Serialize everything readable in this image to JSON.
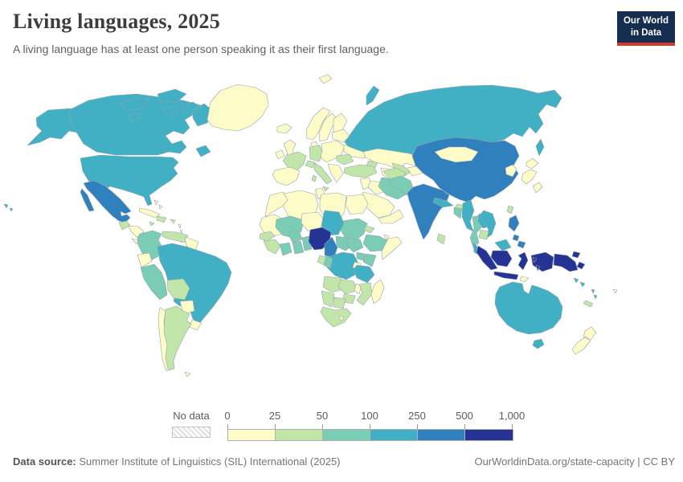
{
  "header": {
    "title": "Living languages, 2025",
    "subtitle": "A living language has at least one person speaking it as their first language."
  },
  "logo": {
    "line1": "Our World",
    "line2": "in Data",
    "bg_color": "#152d4e",
    "accent_color": "#d5382d"
  },
  "legend": {
    "no_data_label": "No data",
    "tick_labels": [
      "0",
      "25",
      "50",
      "100",
      "250",
      "500",
      "1,000"
    ],
    "bin_colors": [
      "#fdfbc8",
      "#c2e5a9",
      "#7accb4",
      "#41b0c4",
      "#2f80bd",
      "#253494"
    ]
  },
  "footer": {
    "source_label": "Data source:",
    "source_text": " Summer Institute of Linguistics (SIL) International (2025)",
    "link_text": "OurWorldinData.org/state-capacity",
    "separator": " | ",
    "license": "CC BY"
  },
  "chart_data": {
    "type": "choropleth",
    "title": "Living languages, 2025",
    "bin_edges": [
      0,
      25,
      50,
      100,
      250,
      500,
      1000
    ],
    "bin_labels": [
      "0-25",
      "25-50",
      "50-100",
      "100-250",
      "250-500",
      "500-1,000"
    ],
    "legend_position": "bottom",
    "country_bins": {
      "canada": 3,
      "usa": 3,
      "greenland": 0,
      "mexico": 4,
      "guatemala": 1,
      "honduras-nicaragua": 0,
      "costa-rica": 0,
      "panama": 1,
      "cuba": 0,
      "hispaniola": 1,
      "jamaica": 1,
      "puerto-rico": 1,
      "bahamas": 0,
      "lesser-antilles": 0,
      "trinidad": 1,
      "colombia": 2,
      "venezuela": 1,
      "guyanas": 0,
      "ecuador": 0,
      "peru": 2,
      "brazil": 3,
      "bolivia": 1,
      "paraguay": 0,
      "uruguay": 0,
      "chile": 0,
      "argentina": 1,
      "falkland": 0,
      "iceland": 0,
      "uk": 0,
      "ireland": 0,
      "norway": 0,
      "sweden": 0,
      "finland": 0,
      "denmark": 0,
      "germany": 1,
      "france": 1,
      "iberia": 0,
      "italy": 1,
      "switzerland": 1,
      "central-europe": 0,
      "baltics": 0,
      "ukraine": 0,
      "romania": 1,
      "balkans": 0,
      "svalbard": 0,
      "russia": 3,
      "kazakhstan": 0,
      "caucasus": 1,
      "turkmenistan": 0,
      "uzbekistan": 1,
      "kyrgyz-tajik": 0,
      "turkey": 1,
      "levant": 0,
      "iraq": 0,
      "iran": 2,
      "saudi": 0,
      "yemen-oman": 0,
      "morocco": 0,
      "wsahara-mauritania": 0,
      "algeria": 0,
      "tunisia": 0,
      "libya": 0,
      "egypt": 0,
      "sudan": 2,
      "eritrea": 1,
      "ethiopia": 2,
      "djibouti": 0,
      "somalia": 0,
      "mali": 2,
      "niger": 0,
      "chad": 3,
      "senegal": 1,
      "guinea-group": 1,
      "cote-divoire": 2,
      "burkina-faso": 2,
      "ghana": 2,
      "togo-benin": 2,
      "nigeria": 5,
      "cameroon": 4,
      "car": 2,
      "south-sudan": 2,
      "drc": 3,
      "gabon": 1,
      "congo": 2,
      "uganda": 2,
      "kenya": 2,
      "rwanda-burundi": 0,
      "tanzania": 3,
      "angola": 1,
      "zambia": 1,
      "malawi": 0,
      "mozambique": 1,
      "zimbabwe": 1,
      "namibia": 1,
      "botswana": 1,
      "south-africa": 1,
      "lesotho": 0,
      "madagascar": 0,
      "afghanistan": 1,
      "pakistan": 2,
      "india": 4,
      "nepal": 3,
      "bhutan": 1,
      "bangladesh": 2,
      "sri-lanka": 1,
      "china": 4,
      "mongolia": 0,
      "koreas": 0,
      "japan": 0,
      "taiwan": 1,
      "myanmar": 3,
      "thailand": 2,
      "laos": 3,
      "vietnam": 3,
      "cambodia": 1,
      "malaysia": 3,
      "philippines": 4,
      "indonesia": 5,
      "png": 5,
      "timor": 0,
      "australia": 3,
      "nz": 0,
      "solomon": 3,
      "vanuatu": 3,
      "fiji": 0,
      "new-caledonia": 1
    }
  }
}
